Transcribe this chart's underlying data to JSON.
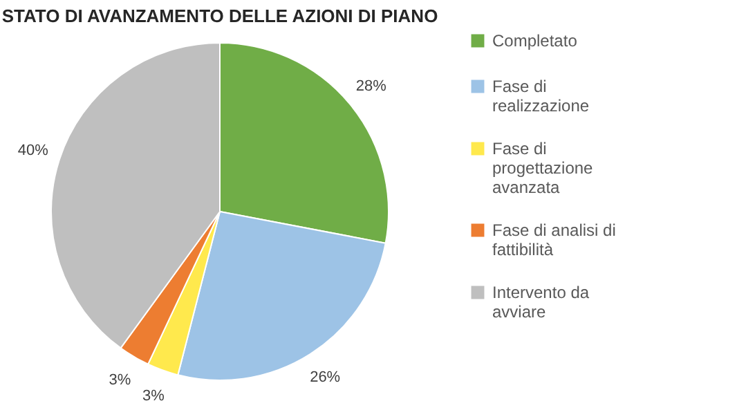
{
  "chart_data": {
    "type": "pie",
    "title": "STATO DI AVANZAMENTO DELLE AZIONI DI PIANO",
    "categories": [
      "Completato",
      "Fase di realizzazione",
      "Fase di progettazione avanzata",
      "Fase di analisi di fattibilità",
      "Intervento da avviare"
    ],
    "values": [
      28,
      26,
      3,
      3,
      40
    ],
    "value_labels": [
      "28%",
      "26%",
      "3%",
      "3%",
      "40%"
    ],
    "colors": [
      "#70ad47",
      "#9dc3e6",
      "#ffe94d",
      "#ed7d31",
      "#bfbfbf"
    ],
    "legend": "right"
  }
}
